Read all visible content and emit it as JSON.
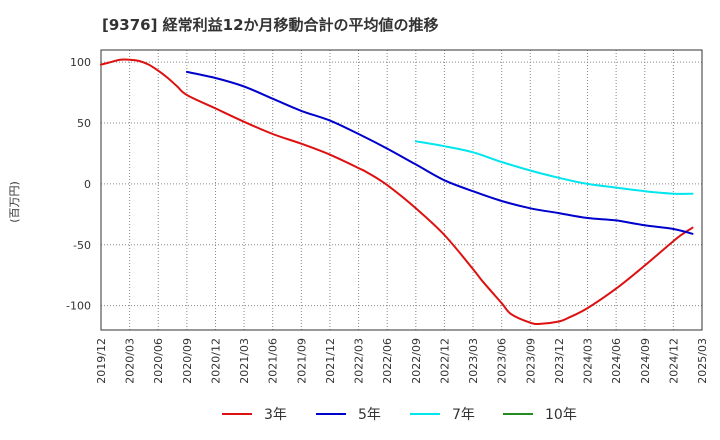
{
  "title": "[9376]  経常利益12か月移動合計の平均値の推移",
  "chart_data": {
    "type": "line",
    "title": "[9376]  経常利益12か月移動合計の平均値の推移",
    "ylabel": "(百万円)",
    "xlabel": "",
    "ylim": [
      -120,
      110
    ],
    "yticks": [
      100,
      50,
      0,
      -50,
      -100
    ],
    "xticks": [
      "2019/12",
      "2020/03",
      "2020/06",
      "2020/09",
      "2020/12",
      "2021/03",
      "2021/06",
      "2021/09",
      "2021/12",
      "2022/03",
      "2022/06",
      "2022/09",
      "2022/12",
      "2023/03",
      "2023/06",
      "2023/09",
      "2023/12",
      "2024/03",
      "2024/06",
      "2024/09",
      "2024/12",
      "2025/03"
    ],
    "grid": true,
    "legend_position": "bottom",
    "series": [
      {
        "name": "3年",
        "color": "#dd1111",
        "points": [
          [
            "2019/12",
            98
          ],
          [
            "2020/01",
            100
          ],
          [
            "2020/02",
            102
          ],
          [
            "2020/03",
            102
          ],
          [
            "2020/04",
            101
          ],
          [
            "2020/05",
            98
          ],
          [
            "2020/06",
            93
          ],
          [
            "2020/07",
            87
          ],
          [
            "2020/08",
            80
          ],
          [
            "2020/09",
            73
          ],
          [
            "2020/12",
            62
          ],
          [
            "2021/03",
            51
          ],
          [
            "2021/06",
            41
          ],
          [
            "2021/09",
            33
          ],
          [
            "2021/12",
            24
          ],
          [
            "2022/03",
            13
          ],
          [
            "2022/04",
            9
          ],
          [
            "2022/06",
            -1
          ],
          [
            "2022/09",
            -20
          ],
          [
            "2022/12",
            -42
          ],
          [
            "2023/03",
            -70
          ],
          [
            "2023/04",
            -80
          ],
          [
            "2023/06",
            -98
          ],
          [
            "2023/07",
            -107
          ],
          [
            "2023/09",
            -114
          ],
          [
            "2023/10",
            -115
          ],
          [
            "2023/12",
            -113
          ],
          [
            "2024/01",
            -110
          ],
          [
            "2024/03",
            -102
          ],
          [
            "2024/06",
            -86
          ],
          [
            "2024/09",
            -67
          ],
          [
            "2024/12",
            -47
          ],
          [
            "2025/01",
            -41
          ],
          [
            "2025/02",
            -36
          ]
        ]
      },
      {
        "name": "5年",
        "color": "#0000cc",
        "points": [
          [
            "2020/09",
            92
          ],
          [
            "2020/12",
            87
          ],
          [
            "2021/03",
            80
          ],
          [
            "2021/06",
            70
          ],
          [
            "2021/09",
            60
          ],
          [
            "2021/12",
            52
          ],
          [
            "2022/03",
            41
          ],
          [
            "2022/06",
            29
          ],
          [
            "2022/09",
            16
          ],
          [
            "2022/12",
            3
          ],
          [
            "2023/03",
            -6
          ],
          [
            "2023/06",
            -14
          ],
          [
            "2023/09",
            -20
          ],
          [
            "2023/12",
            -24
          ],
          [
            "2024/03",
            -28
          ],
          [
            "2024/06",
            -30
          ],
          [
            "2024/09",
            -34
          ],
          [
            "2024/12",
            -37
          ],
          [
            "2025/02",
            -41
          ]
        ]
      },
      {
        "name": "7年",
        "color": "#00e5ee",
        "points": [
          [
            "2022/09",
            35
          ],
          [
            "2022/12",
            31
          ],
          [
            "2023/03",
            26
          ],
          [
            "2023/06",
            18
          ],
          [
            "2023/09",
            11
          ],
          [
            "2023/12",
            5
          ],
          [
            "2024/03",
            0
          ],
          [
            "2024/06",
            -3
          ],
          [
            "2024/09",
            -6
          ],
          [
            "2024/12",
            -8
          ],
          [
            "2025/02",
            -8
          ]
        ]
      },
      {
        "name": "10年",
        "color": "#228b22",
        "points": []
      }
    ]
  }
}
